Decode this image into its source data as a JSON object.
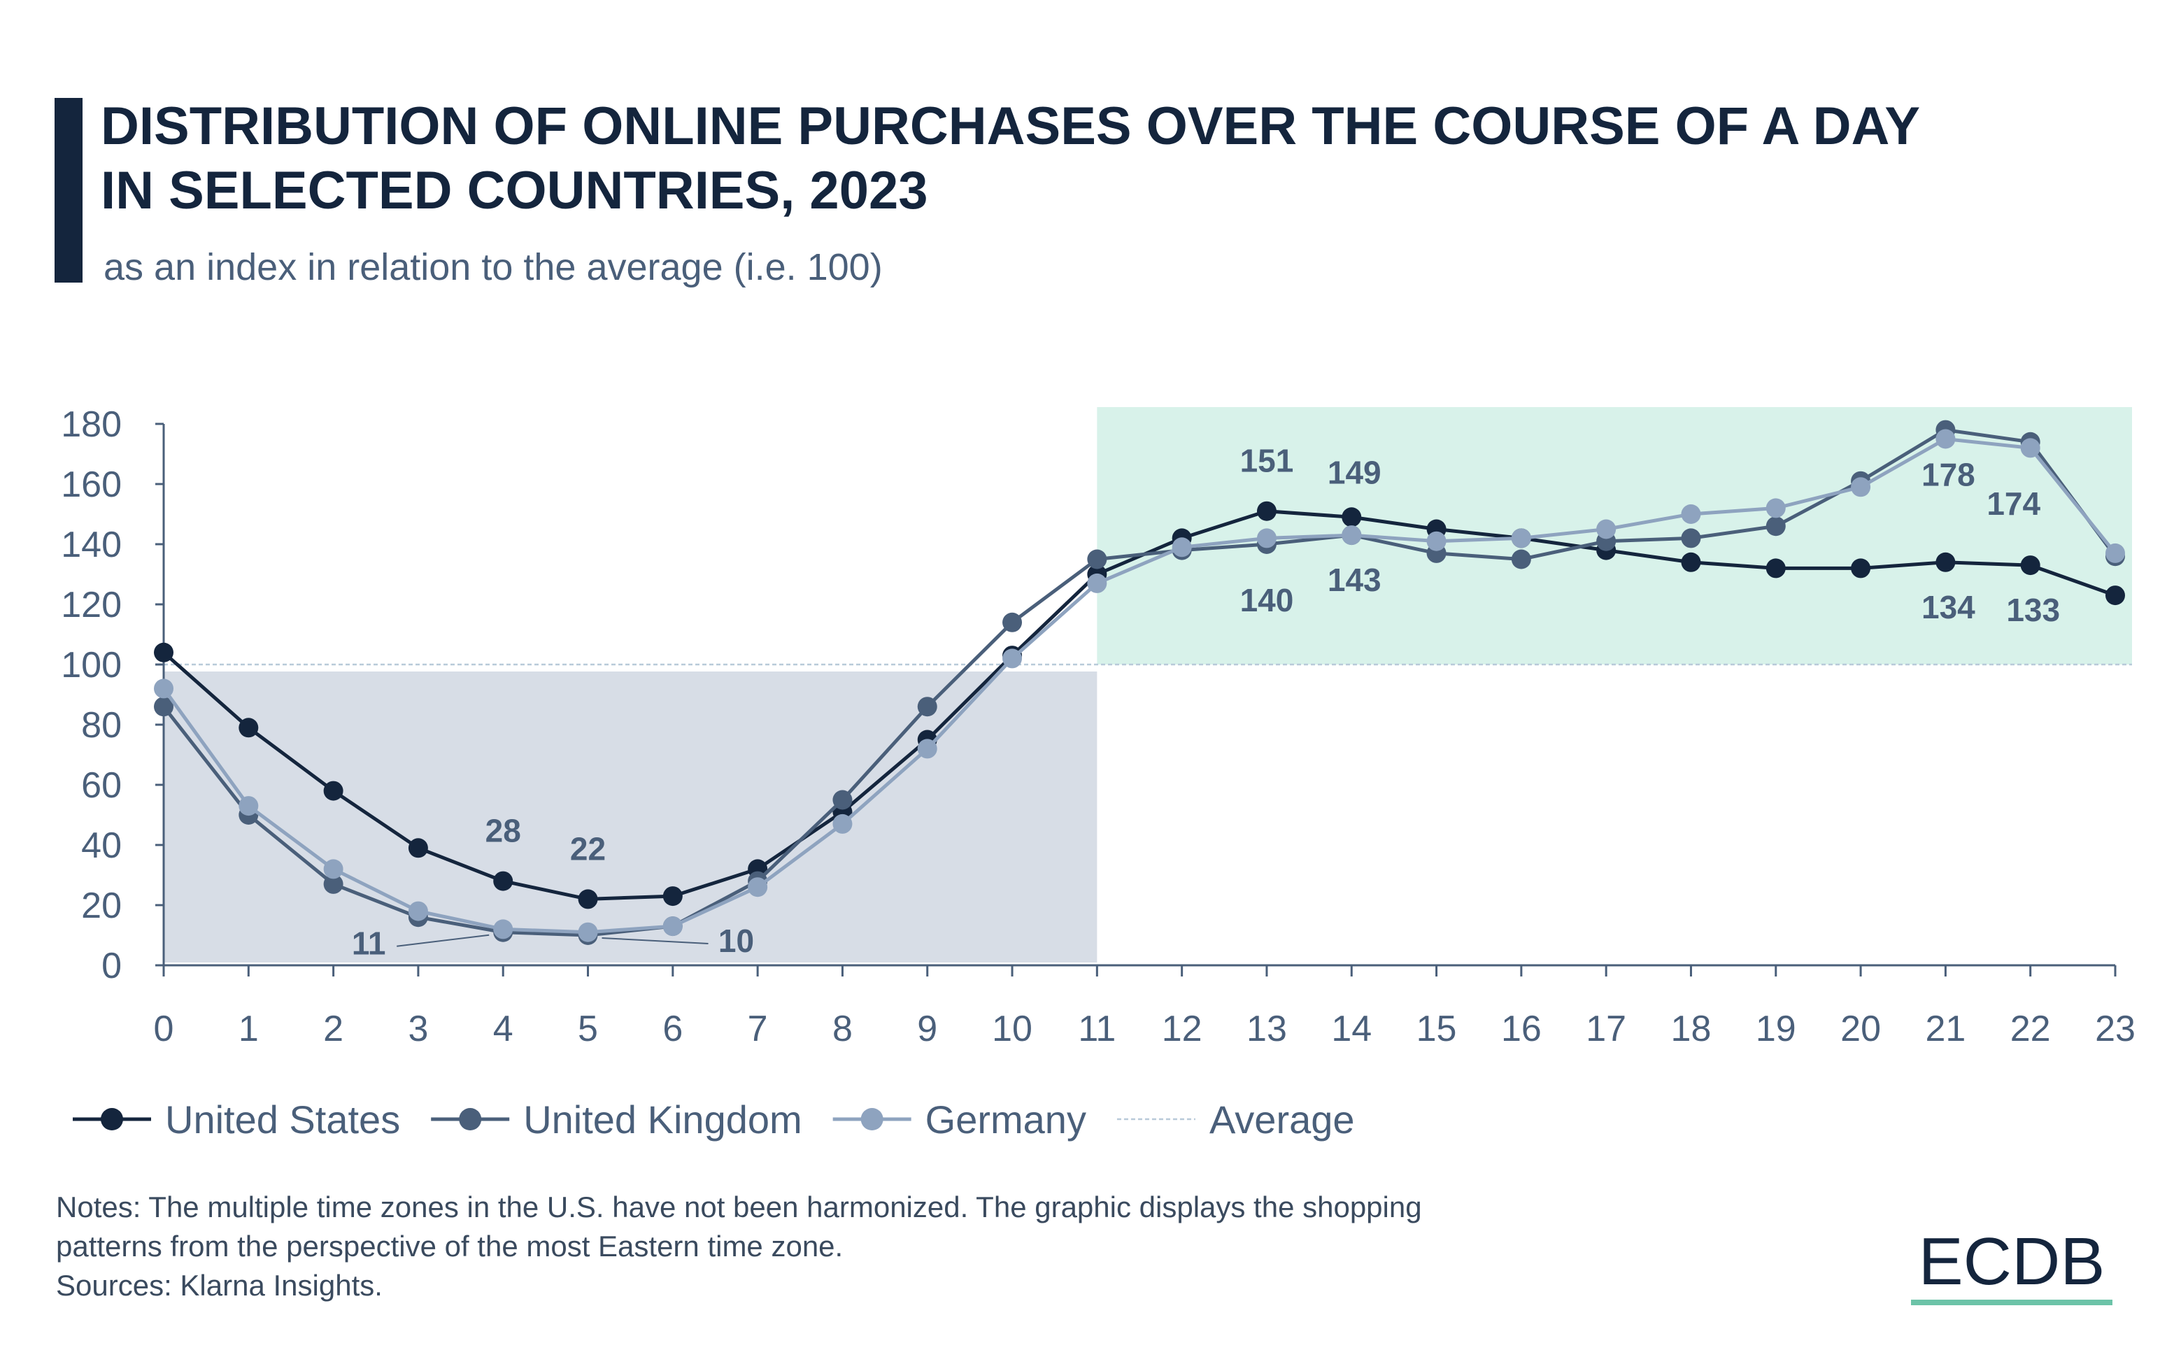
{
  "chart_data": {
    "type": "line",
    "title": "DISTRIBUTION OF ONLINE PURCHASES OVER THE COURSE OF A DAY IN SELECTED COUNTRIES, 2023",
    "subtitle": "as an index in relation to the average (i.e. 100)",
    "x": [
      0,
      1,
      2,
      3,
      4,
      5,
      6,
      7,
      8,
      9,
      10,
      11,
      12,
      13,
      14,
      15,
      16,
      17,
      18,
      19,
      20,
      21,
      22,
      23
    ],
    "xlim": [
      0,
      23
    ],
    "xticks": [
      0,
      1,
      2,
      3,
      4,
      5,
      6,
      7,
      8,
      9,
      10,
      11,
      12,
      13,
      14,
      15,
      16,
      17,
      18,
      19,
      20,
      21,
      22,
      23
    ],
    "ylim": [
      0,
      180
    ],
    "yticks": [
      0,
      20,
      40,
      60,
      80,
      100,
      120,
      140,
      160,
      180
    ],
    "series": [
      {
        "name": "United States",
        "color": "#14253d",
        "values": [
          104,
          79,
          58,
          39,
          28,
          22,
          23,
          32,
          51,
          75,
          103,
          130,
          142,
          151,
          149,
          145,
          142,
          138,
          134,
          132,
          132,
          134,
          133,
          123
        ],
        "value_labels": [
          null,
          null,
          null,
          null,
          "28",
          "22",
          null,
          null,
          null,
          null,
          null,
          null,
          null,
          "151",
          "149",
          null,
          null,
          null,
          null,
          null,
          null,
          "134",
          "133",
          null
        ]
      },
      {
        "name": "United Kingdom",
        "color": "#4a5f7a",
        "values": [
          86,
          50,
          27,
          16,
          11,
          10,
          13,
          28,
          55,
          86,
          114,
          135,
          138,
          140,
          143,
          137,
          135,
          141,
          142,
          146,
          161,
          178,
          174,
          136
        ],
        "value_labels": [
          null,
          null,
          null,
          null,
          "11",
          "10",
          null,
          null,
          null,
          null,
          null,
          null,
          null,
          "140",
          "143",
          null,
          null,
          null,
          null,
          null,
          null,
          "178",
          "174",
          null
        ]
      },
      {
        "name": "Germany",
        "color": "#8ea3bf",
        "values": [
          92,
          53,
          32,
          18,
          12,
          11,
          13,
          26,
          47,
          72,
          102,
          127,
          139,
          142,
          143,
          141,
          142,
          145,
          150,
          152,
          159,
          175,
          172,
          137
        ]
      }
    ],
    "average": {
      "name": "Average",
      "value": 100,
      "color": "#b8cad9"
    },
    "highlights": [
      {
        "xlim": [
          0,
          11
        ],
        "color": "#d7dde6"
      },
      {
        "xlim": [
          11,
          23
        ],
        "color": "#d8f2ea"
      }
    ],
    "notes": [
      "Notes: The multiple time zones in the U.S. have not been harmonized. The graphic displays the shopping",
      "patterns from the perspective of the most Eastern time zone.",
      "Sources: Klarna Insights."
    ],
    "logo": "ECDB"
  }
}
